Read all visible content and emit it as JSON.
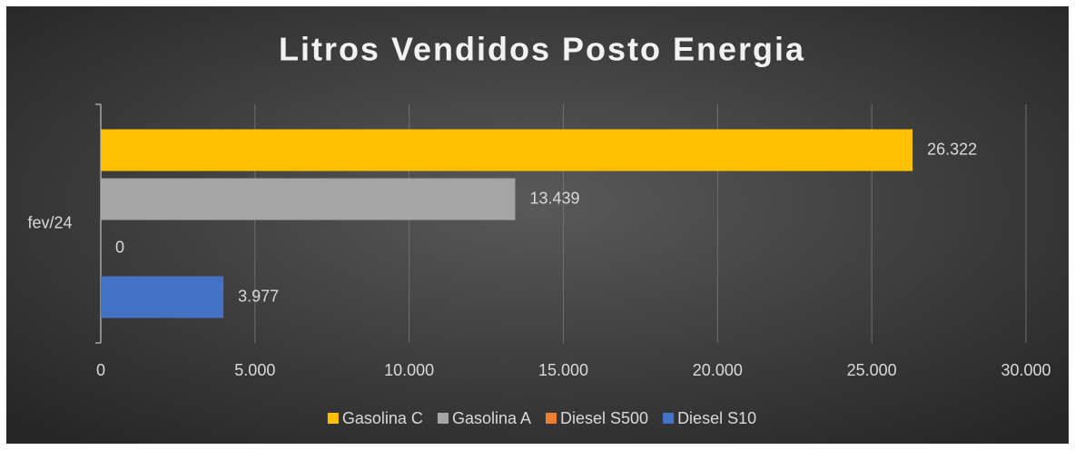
{
  "chart_data": {
    "type": "bar",
    "orientation": "horizontal",
    "title": "Litros Vendidos Posto Energia",
    "categories": [
      "fev/24"
    ],
    "series": [
      {
        "name": "Gasolina C",
        "color": "#ffc000",
        "values": [
          26322
        ],
        "value_labels": [
          "26.322"
        ]
      },
      {
        "name": "Gasolina A",
        "color": "#a5a5a5",
        "values": [
          13439
        ],
        "value_labels": [
          "13.439"
        ]
      },
      {
        "name": "Diesel S500",
        "color": "#ed7d31",
        "values": [
          0
        ],
        "value_labels": [
          "0"
        ]
      },
      {
        "name": "Diesel S10",
        "color": "#4472c4",
        "values": [
          3977
        ],
        "value_labels": [
          "3.977"
        ]
      }
    ],
    "xlim": [
      0,
      30000
    ],
    "xticks": [
      0,
      {
        "value": 5000,
        "label": "5.000"
      },
      {
        "value": 10000,
        "label": "10.000"
      },
      {
        "value": 15000,
        "label": "15.000"
      },
      {
        "value": 20000,
        "label": "20.000"
      },
      {
        "value": 25000,
        "label": "25.000"
      },
      {
        "value": 30000,
        "label": "30.000"
      }
    ],
    "grid": true,
    "legend": "bottom"
  }
}
